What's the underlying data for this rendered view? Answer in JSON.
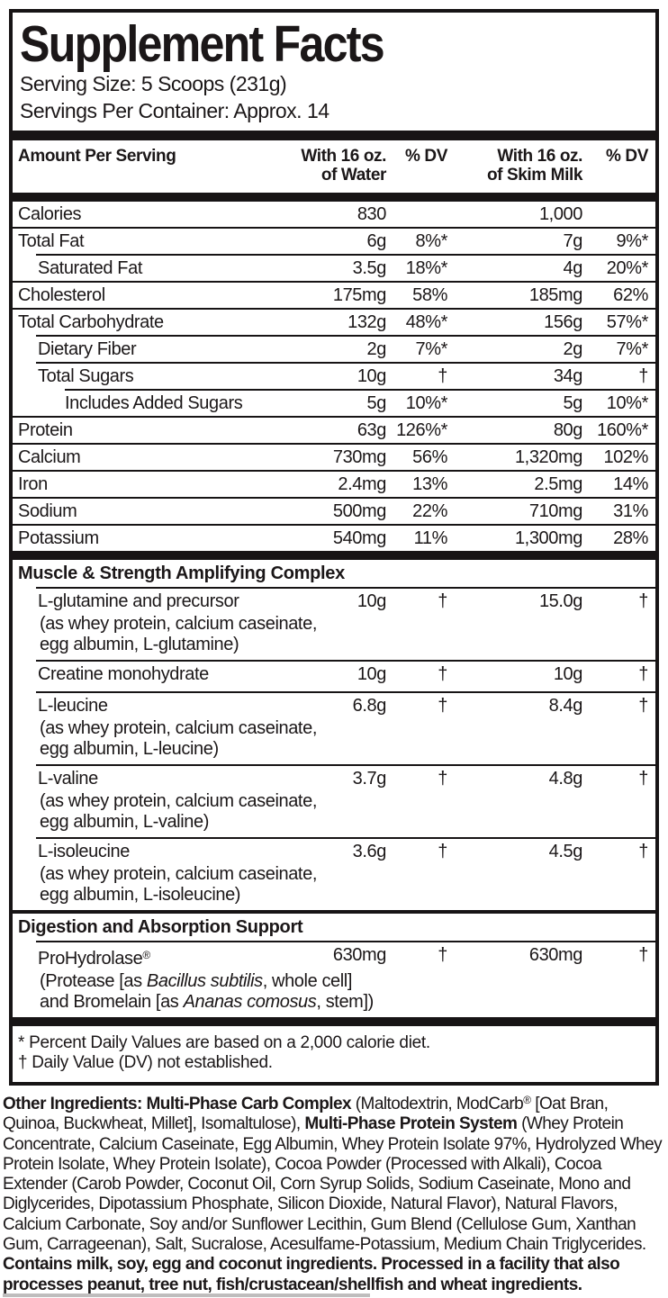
{
  "label": {
    "title": "Supplement Facts",
    "serving_size": "Serving Size: 5 Scoops (231g)",
    "servings_per_container": "Servings Per Container: Approx. 14"
  },
  "columns": {
    "amount_per_serving": "Amount Per Serving",
    "water_line1": "With 16 oz.",
    "water_line2": "of Water",
    "water_dv": "% DV",
    "milk_line1": "With 16 oz.",
    "milk_line2": "of Skim Milk",
    "milk_dv": "% DV"
  },
  "nutrients": [
    {
      "name": "Calories",
      "water": "830",
      "water_dv": "",
      "milk": "1,000",
      "milk_dv": ""
    },
    {
      "name": "Total Fat",
      "water": "6g",
      "water_dv": "8%*",
      "milk": "7g",
      "milk_dv": "9%*"
    },
    {
      "name": "Saturated Fat",
      "water": "3.5g",
      "water_dv": "18%*",
      "milk": "4g",
      "milk_dv": "20%*"
    },
    {
      "name": "Cholesterol",
      "water": "175mg",
      "water_dv": "58%",
      "milk": "185mg",
      "milk_dv": "62%"
    },
    {
      "name": "Total Carbohydrate",
      "water": "132g",
      "water_dv": "48%*",
      "milk": "156g",
      "milk_dv": "57%*"
    },
    {
      "name": "Dietary Fiber",
      "water": "2g",
      "water_dv": "7%*",
      "milk": "2g",
      "milk_dv": "7%*"
    },
    {
      "name": "Total Sugars",
      "water": "10g",
      "water_dv": "†",
      "milk": "34g",
      "milk_dv": "†"
    },
    {
      "name": "Includes Added Sugars",
      "water": "5g",
      "water_dv": "10%*",
      "milk": "5g",
      "milk_dv": "10%*"
    },
    {
      "name": "Protein",
      "water": "63g",
      "water_dv": "126%*",
      "milk": "80g",
      "milk_dv": "160%*"
    },
    {
      "name": "Calcium",
      "water": "730mg",
      "water_dv": "56%",
      "milk": "1,320mg",
      "milk_dv": "102%"
    },
    {
      "name": "Iron",
      "water": "2.4mg",
      "water_dv": "13%",
      "milk": "2.5mg",
      "milk_dv": "14%"
    },
    {
      "name": "Sodium",
      "water": "500mg",
      "water_dv": "22%",
      "milk": "710mg",
      "milk_dv": "31%"
    },
    {
      "name": "Potassium",
      "water": "540mg",
      "water_dv": "11%",
      "milk": "1,300mg",
      "milk_dv": "28%"
    }
  ],
  "muscle_complex": {
    "title": "Muscle & Strength Amplifying Complex",
    "rows": [
      {
        "name": "L-glutamine and precursor",
        "water": "10g",
        "water_dv": "†",
        "milk": "15.0g",
        "milk_dv": "†",
        "sub1": "(as whey protein, calcium caseinate,",
        "sub2": "egg albumin, L-glutamine)"
      },
      {
        "name": "Creatine monohydrate",
        "water": "10g",
        "water_dv": "†",
        "milk": "10g",
        "milk_dv": "†"
      },
      {
        "name": "L-leucine",
        "water": "6.8g",
        "water_dv": "†",
        "milk": "8.4g",
        "milk_dv": "†",
        "sub1": "(as whey protein, calcium caseinate,",
        "sub2": "egg albumin, L-leucine)"
      },
      {
        "name": "L-valine",
        "water": "3.7g",
        "water_dv": "†",
        "milk": "4.8g",
        "milk_dv": "†",
        "sub1": "(as whey protein, calcium caseinate,",
        "sub2": "egg albumin, L-valine)"
      },
      {
        "name": "L-isoleucine",
        "water": "3.6g",
        "water_dv": "†",
        "milk": "4.5g",
        "milk_dv": "†",
        "sub1": "(as whey protein, calcium caseinate,",
        "sub2": "egg albumin, L-isoleucine)"
      }
    ]
  },
  "digestion": {
    "title": "Digestion and Absorption Support",
    "row": {
      "name": "ProHydrolase",
      "reg_mark": "®",
      "water": "630mg",
      "water_dv": "†",
      "milk": "630mg",
      "milk_dv": "†",
      "sub1_a": "(Protease [as ",
      "sub1_i": "Bacillus subtilis",
      "sub1_b": ", whole cell]",
      "sub2_a": "and Bromelain [as ",
      "sub2_i": "Ananas comosus",
      "sub2_b": ", stem])"
    }
  },
  "footnotes": {
    "dv_note": "* Percent Daily Values are based on a 2,000 calorie diet.",
    "dagger_note": "† Daily Value (DV) not established."
  },
  "other_ingredients": {
    "seg1_bold": "Other Ingredients: Multi-Phase Carb Complex",
    "seg2": " (Maltodextrin, ModCarb",
    "seg3_sup": "®",
    "seg4": " [Oat Bran, Quinoa, Buckwheat, Millet], Isomaltulose), ",
    "seg5_bold": "Multi-Phase Protein System",
    "seg6": " (Whey Protein Concentrate, Calcium Caseinate, Egg Albumin, Whey Protein Isolate 97%, Hydrolyzed Whey Protein Isolate, Whey Protein Isolate), Cocoa Powder (Processed with Alkali), Cocoa Extender (Carob Powder, Coconut Oil, Corn Syrup Solids, Sodium Caseinate, Mono and Diglycerides, Dipotassium Phosphate, Silicon Dioxide, Natural Flavor), Natural Flavors, Calcium Carbonate, Soy and/or Sunflower Lecithin, Gum Blend (Cellulose Gum, Xanthan Gum, Carrageenan), Salt, Sucralose, Acesulfame-Potassium, Medium Chain Triglycerides. ",
    "seg7_bold": "Contains milk, soy, egg and coconut ingredients. Processed in a facility that also processes peanut, tree nut, fish/crustacean/shellfish and wheat ingredients."
  },
  "colors": {
    "ink": "#171415",
    "background": "#ffffff"
  }
}
